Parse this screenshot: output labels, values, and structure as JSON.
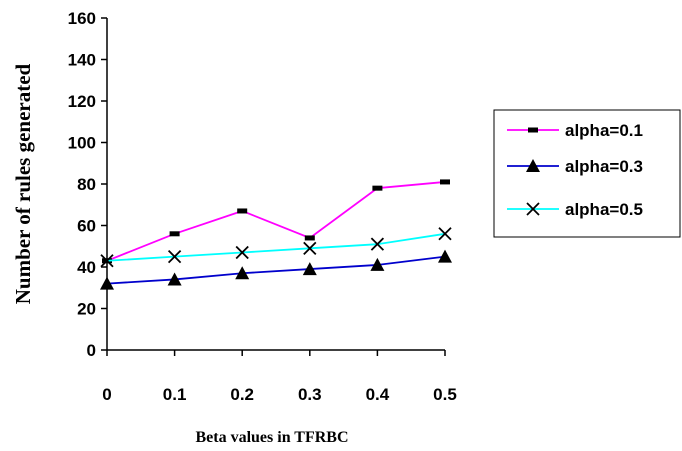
{
  "chart_data": {
    "type": "line",
    "title": "",
    "xlabel": "Beta values in  TFRBC",
    "ylabel": "Number of rules generated",
    "categories": [
      "0",
      "0.1",
      "0.2",
      "0.3",
      "0.4",
      "0.5"
    ],
    "ylim": [
      0,
      160
    ],
    "yticks": [
      "0",
      "20",
      "40",
      "60",
      "80",
      "100",
      "120",
      "140",
      "160"
    ],
    "grid": false,
    "legend_position": "right",
    "series": [
      {
        "name": "alpha=0.1",
        "values": [
          43,
          56,
          67,
          54,
          78,
          81
        ],
        "color": "#ff00ff",
        "marker": "dash"
      },
      {
        "name": "alpha=0.3",
        "values": [
          32,
          34,
          37,
          39,
          41,
          45
        ],
        "color": "#0000cc",
        "marker": "triangle"
      },
      {
        "name": "alpha=0.5",
        "values": [
          43,
          45,
          47,
          49,
          51,
          56
        ],
        "color": "#00ffff",
        "marker": "x"
      }
    ]
  }
}
